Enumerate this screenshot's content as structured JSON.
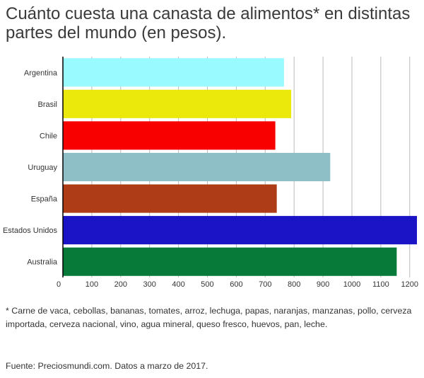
{
  "title": "Cuánto cuesta una canasta de alimentos* en distintas partes del mundo (en pesos).",
  "footnote": "* Carne de vaca, cebollas, bananas, tomates, arroz, lechuga, papas, naranjas, manzanas, pollo, cerveza importada, cerveza nacional, vino, agua mineral, queso fresco, huevos, pan, leche.",
  "source": "Fuente: Preciosmundi.com. Datos a marzo de 2017.",
  "chart_data": {
    "type": "bar",
    "orientation": "horizontal",
    "categories": [
      "Argentina",
      "Brasil",
      "Chile",
      "Uruguay",
      "España",
      "Estados Unidos",
      "Australia"
    ],
    "values": [
      765,
      790,
      735,
      925,
      740,
      1225,
      1155
    ],
    "colors": [
      "#99faff",
      "#ebe80b",
      "#f80000",
      "#8fbfc6",
      "#ae3c17",
      "#1b14c6",
      "#077a3a"
    ],
    "xlim": [
      0,
      1225
    ],
    "xticks": [
      0,
      100,
      200,
      300,
      400,
      500,
      600,
      700,
      800,
      900,
      1000,
      1100,
      1200
    ],
    "grid": true,
    "xlabel": "",
    "ylabel": ""
  }
}
